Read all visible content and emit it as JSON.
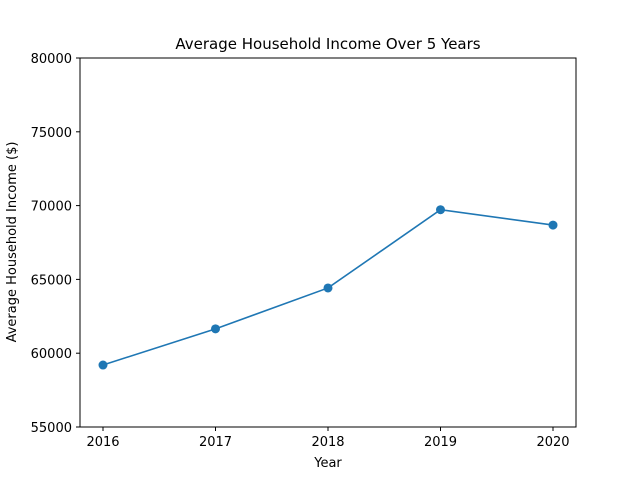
{
  "chart_data": {
    "type": "line",
    "title": "Average Household Income Over 5 Years",
    "xlabel": "Year",
    "ylabel": "Average Household Income ($)",
    "x": [
      "2016",
      "2017",
      "2018",
      "2019",
      "2020"
    ],
    "series": [
      {
        "values": [
          59200,
          61650,
          64420,
          69720,
          68680
        ]
      }
    ],
    "xticks": [
      "2016",
      "2017",
      "2018",
      "2019",
      "2020"
    ],
    "yticks": [
      "55000",
      "60000",
      "65000",
      "70000",
      "75000",
      "80000"
    ],
    "ylim": [
      55000,
      80000
    ],
    "grid": false,
    "color": "#1f77b4",
    "marker": "circle"
  }
}
